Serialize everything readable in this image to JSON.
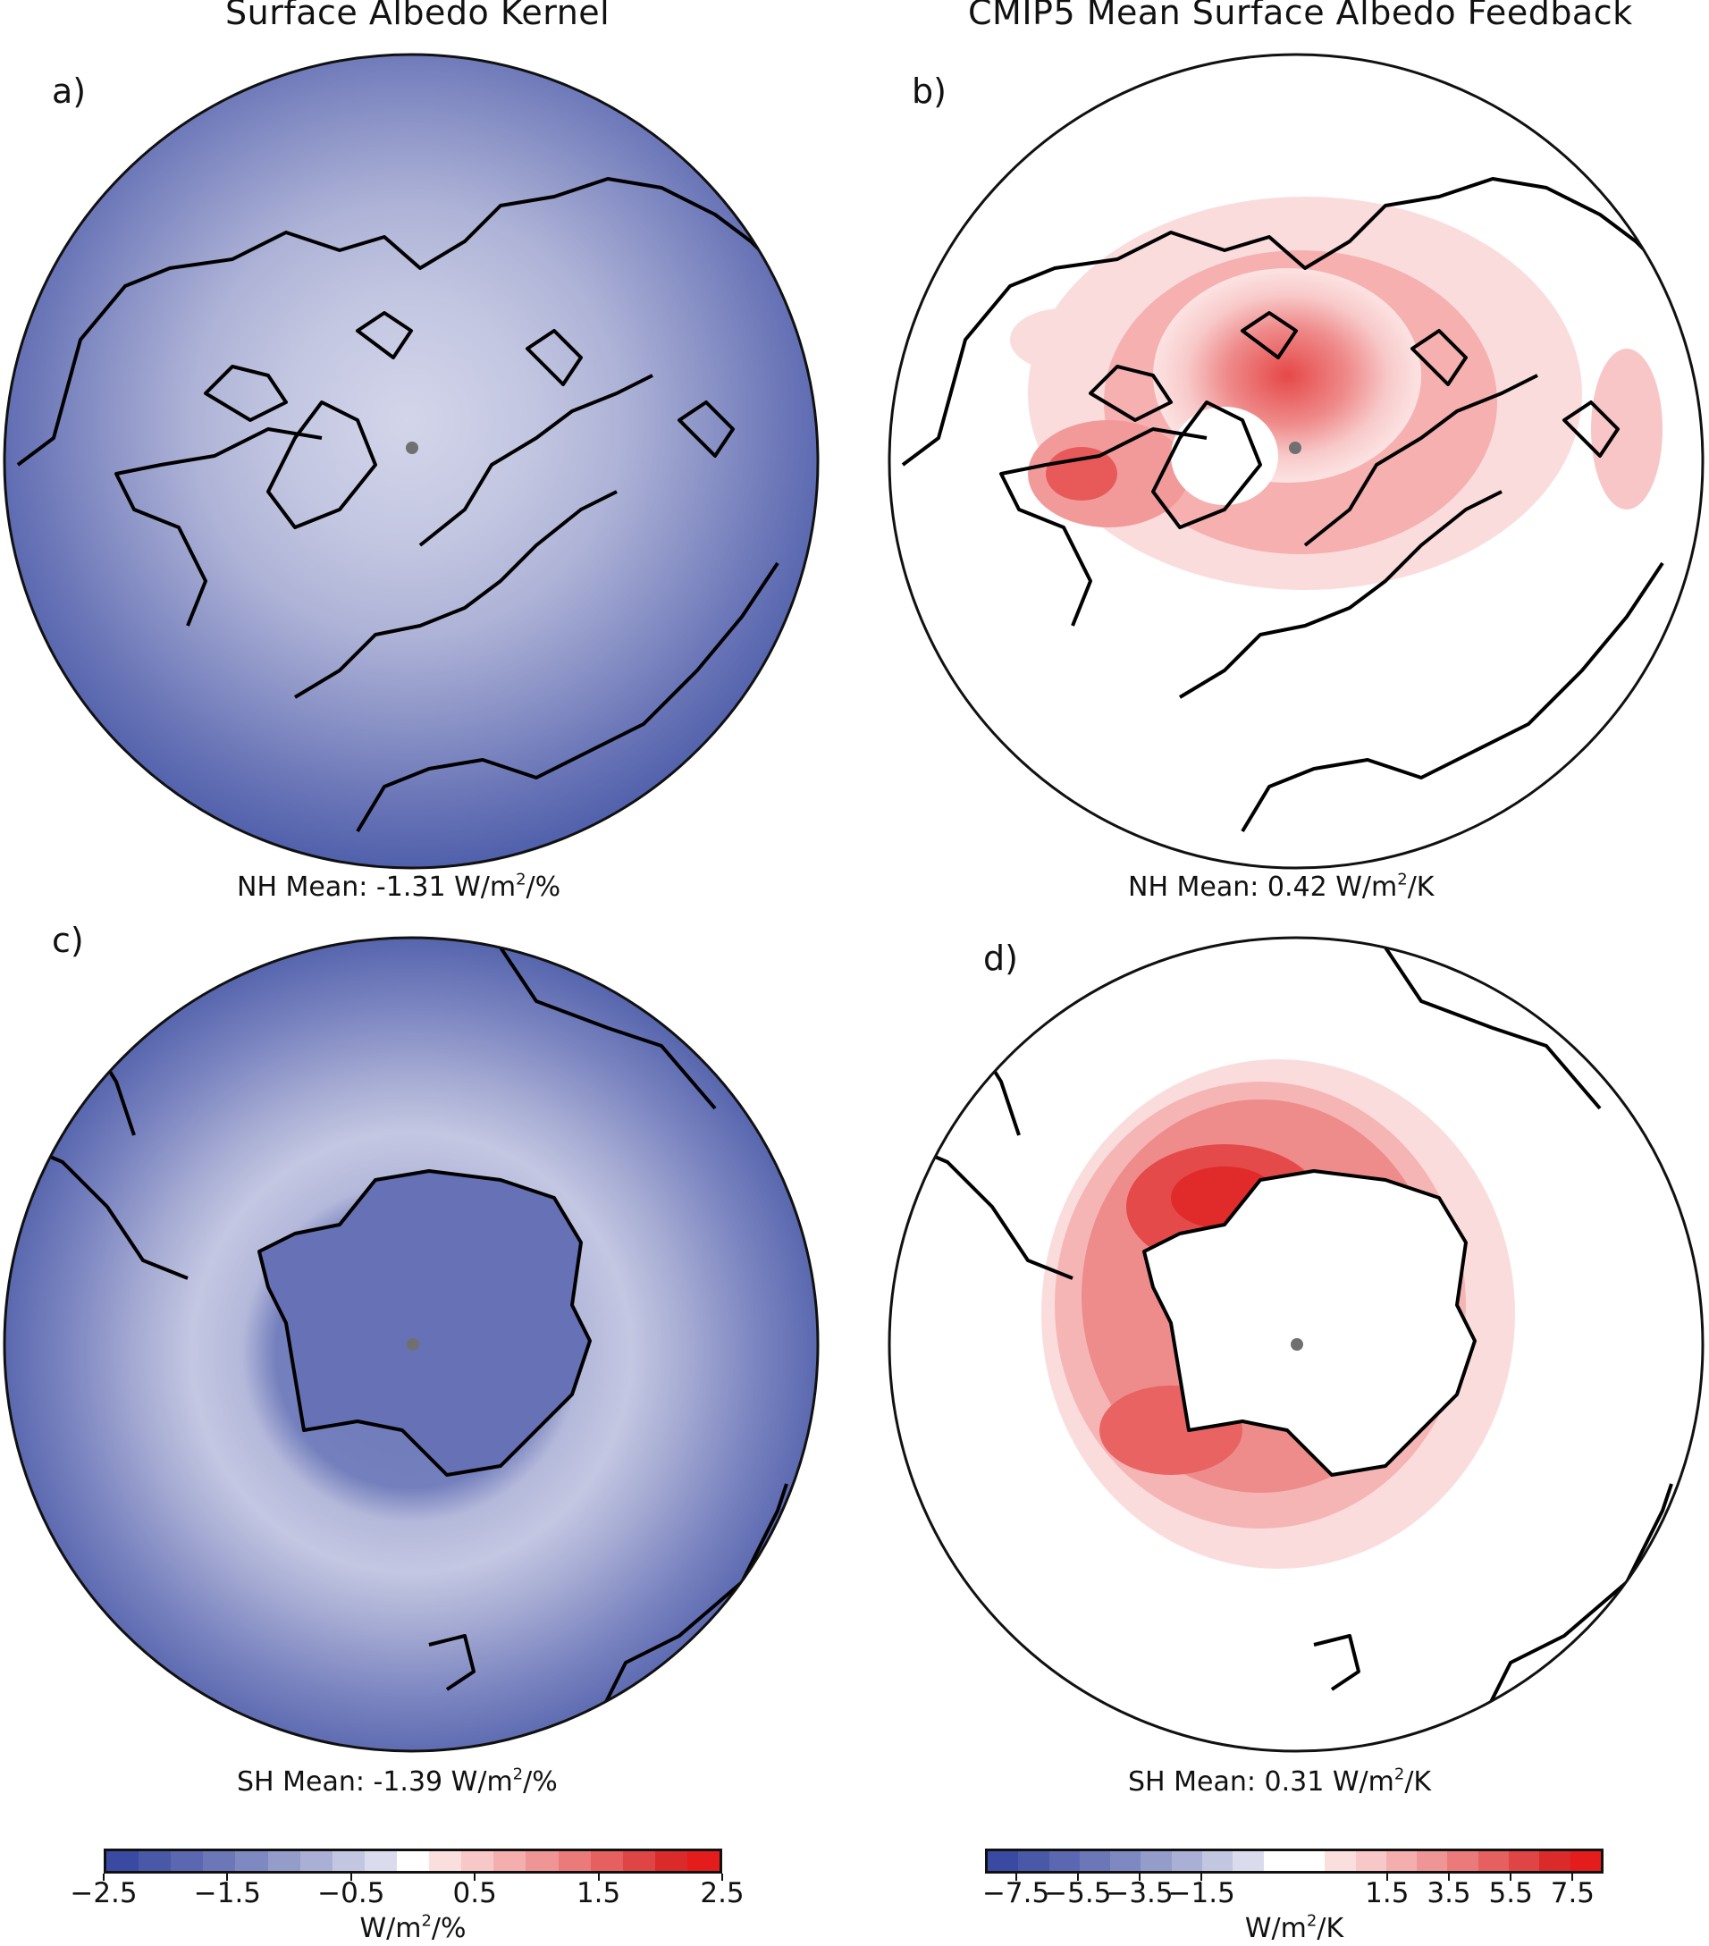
{
  "titles": {
    "left": "Surface Albedo Kernel",
    "right": "CMIP5 Mean Surface Albedo Feedback"
  },
  "panels": [
    {
      "id": "a",
      "label": "a)",
      "mean": "NH Mean: -1.31 W/m",
      "mean_sup": "2",
      "mean_tail": "/%"
    },
    {
      "id": "b",
      "label": "b)",
      "mean": "NH Mean: 0.42 W/m",
      "mean_sup": "2",
      "mean_tail": "/K"
    },
    {
      "id": "c",
      "label": "c)",
      "mean": "SH Mean: -1.39 W/m",
      "mean_sup": "2",
      "mean_tail": "/%"
    },
    {
      "id": "d",
      "label": "d)",
      "mean": "SH Mean: 0.31 W/m",
      "mean_sup": "2",
      "mean_tail": "/K"
    }
  ],
  "colorbars": {
    "left": {
      "ticks": [
        "−2.5",
        "−1.5",
        "−0.5",
        "0.5",
        "1.5",
        "2.5"
      ],
      "unit": "W/m",
      "unit_sup": "2",
      "unit_tail": "/%",
      "colors": [
        "#3a4aa2",
        "#4a58a8",
        "#5b67b0",
        "#6c77b8",
        "#7e88c1",
        "#949cca",
        "#aab0d5",
        "#c2c6e1",
        "#dadced",
        "#ffffff",
        "#fbdfdf",
        "#f8c7c7",
        "#f4aeae",
        "#f09595",
        "#eb7b7b",
        "#e66060",
        "#e04545",
        "#da2a2a",
        "#e41c1c"
      ]
    },
    "right": {
      "ticks": [
        "−7.5",
        "−5.5",
        "−3.5",
        "−1.5",
        "1.5",
        "3.5",
        "5.5",
        "7.5"
      ],
      "unit": "W/m",
      "unit_sup": "2",
      "unit_tail": "/K",
      "colors": [
        "#3a4aa2",
        "#4a58a8",
        "#5b67b0",
        "#6c77b8",
        "#7e88c1",
        "#949cca",
        "#aab0d5",
        "#c2c6e1",
        "#dadced",
        "#ffffff",
        "#ffffff",
        "#fbdfdf",
        "#f8c7c7",
        "#f4aeae",
        "#f09595",
        "#eb7b7b",
        "#e66060",
        "#e04545",
        "#da2a2a",
        "#e41c1c"
      ]
    }
  },
  "colors": {
    "kernel_outer": "#5a66b0",
    "kernel_mid": "#8b93c6",
    "kernel_inner": "#b9bcdc",
    "kernel_core": "#d0d2e8",
    "feedback_low": "#fbdada",
    "feedback_mid": "#f5a8a8",
    "feedback_high": "#ea4f4f",
    "coast": "#000000",
    "pole_dot": "#707070"
  }
}
